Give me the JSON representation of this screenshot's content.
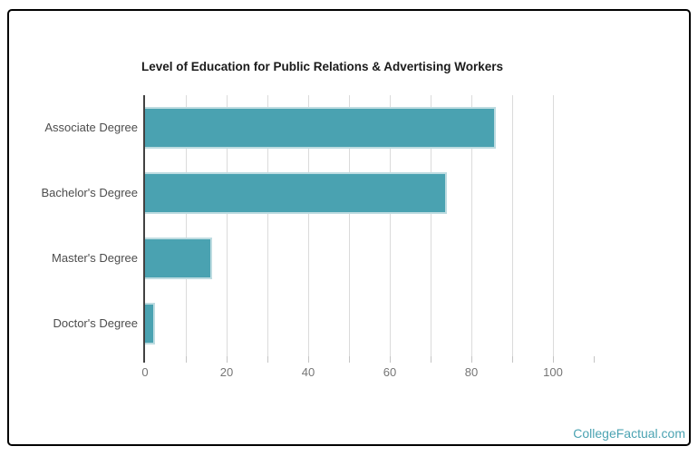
{
  "card": {
    "background": "#ffffff",
    "border_color": "#000000"
  },
  "chart_data": {
    "type": "bar",
    "orientation": "horizontal",
    "title": "Level of Education for Public Relations & Advertising Workers",
    "categories": [
      "Associate Degree",
      "Bachelor's Degree",
      "Master's Degree",
      "Doctor's Degree"
    ],
    "values": [
      86,
      74,
      16.5,
      2.5
    ],
    "xlabel": "",
    "ylabel": "",
    "xlim": [
      0,
      110
    ],
    "minor_tick_step": 10,
    "x_tick_labels": [
      "0",
      "20",
      "40",
      "60",
      "80",
      "100"
    ],
    "x_tick_label_values": [
      0,
      20,
      40,
      60,
      80,
      100
    ],
    "grid": true,
    "legend": false,
    "colors": {
      "bar_fill": "#4AA2B1",
      "bar_edge": "#BEDCE1",
      "axis_line": "#424242",
      "gridline": "#DBDBDB",
      "tick_mark": "#C4C4C4",
      "tick_label": "#757575",
      "category_label": "#4D4D4D",
      "title": "#1B1B1B"
    }
  },
  "watermark": {
    "text": "CollegeFactual.com",
    "color": "#4BA3B2"
  }
}
